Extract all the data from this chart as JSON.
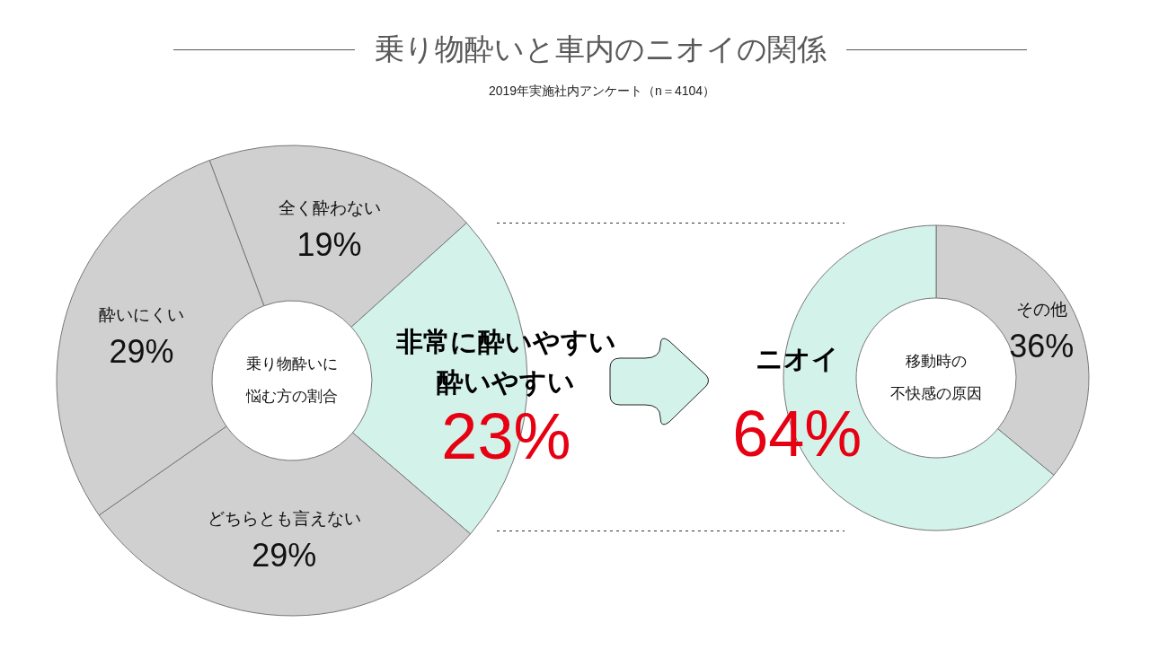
{
  "chart_data": [
    {
      "type": "donut",
      "title": "乗り物酔いと車内のニオイの関係",
      "subtitle": "2019年実施社内アンケート（n＝4104）",
      "categories": [
        "全く酔わない",
        "非常に酔いやすい酔いやすい",
        "どちらとも言えない",
        "酔いにくい"
      ],
      "values": [
        19,
        23,
        29,
        29
      ],
      "colors": [
        "#d0d0d0",
        "#d3f2ea",
        "#d0d0d0",
        "#d0d0d0"
      ],
      "value_labels": [
        "19%",
        "23%",
        "29%",
        "29%"
      ],
      "annotations": [
        "乗り物酔いに",
        "悩む方の割合"
      ]
    },
    {
      "type": "donut",
      "categories": [
        "その他",
        "ニオイ"
      ],
      "values": [
        36,
        64
      ],
      "colors": [
        "#d0d0d0",
        "#d3f2ea"
      ],
      "value_labels": [
        "36%",
        "64%"
      ],
      "annotations": [
        "移動時の",
        "不快感の原因"
      ]
    }
  ]
}
